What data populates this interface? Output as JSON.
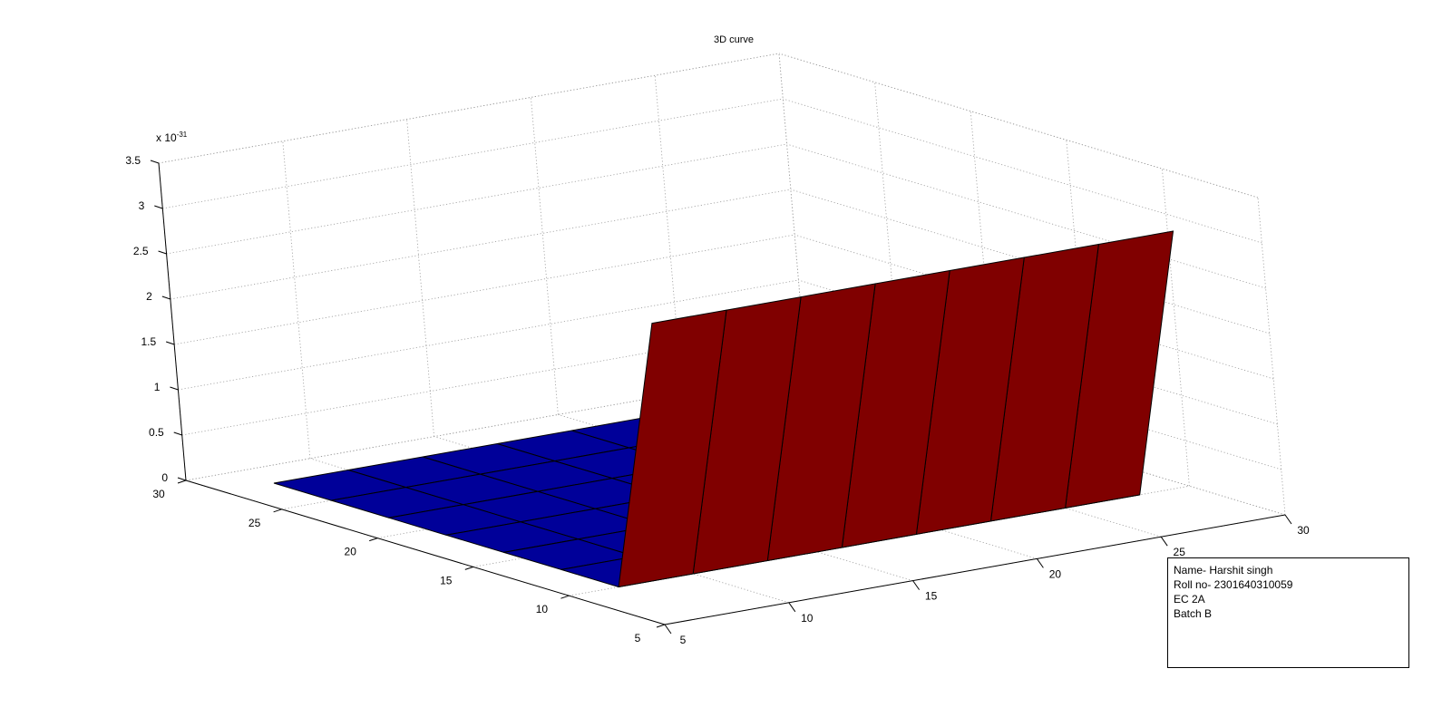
{
  "chart_data": {
    "type": "surface",
    "title": "3D curve",
    "xlabel": "",
    "ylabel": "",
    "zlabel": "",
    "z_exponent_label": "x 10",
    "z_exponent_sup": "-31",
    "xlim": [
      5,
      30
    ],
    "ylim": [
      5,
      30
    ],
    "zlim": [
      0,
      3.5e-31
    ],
    "x_ticks": [
      "5",
      "10",
      "15",
      "20",
      "25",
      "30"
    ],
    "y_ticks": [
      "5",
      "10",
      "15",
      "20",
      "25",
      "30"
    ],
    "z_ticks": [
      "0",
      "0.5",
      "1",
      "1.5",
      "2",
      "2.5",
      "3",
      "3.5"
    ],
    "grid": true,
    "x": [
      7,
      10,
      13,
      16,
      19,
      22,
      25,
      28
    ],
    "y": [
      7,
      10,
      13,
      16,
      19,
      22,
      25,
      28
    ],
    "z_profile_along_y": [
      3.1e-31,
      0,
      0,
      0,
      0,
      0,
      0,
      0
    ],
    "colors": {
      "high": "#800000",
      "low": "#000099",
      "edge": "#000000"
    }
  },
  "annotation": {
    "lines": [
      "Name- Harshit singh",
      "Roll no- 2301640310059",
      "EC 2A",
      "Batch B"
    ]
  }
}
